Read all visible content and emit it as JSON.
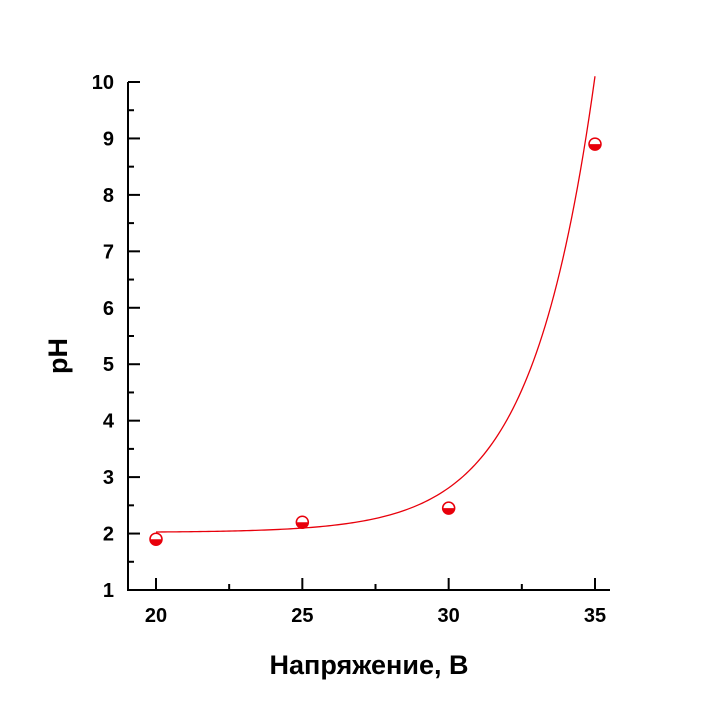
{
  "chart_data": {
    "type": "scatter",
    "title": "",
    "xlabel": "Напряжение, В",
    "ylabel": "pH",
    "xlim": [
      19,
      35.5
    ],
    "ylim": [
      1,
      10
    ],
    "xticks": [
      20,
      25,
      30,
      35
    ],
    "yticks": [
      1,
      2,
      3,
      4,
      5,
      6,
      7,
      8,
      9,
      10
    ],
    "grid": false,
    "legend": "none",
    "series": [
      {
        "marker": "half-filled-circle",
        "color": "#e8000b",
        "x": [
          20,
          25,
          30,
          35
        ],
        "y": [
          1.9,
          2.2,
          2.45,
          8.9
        ]
      }
    ],
    "fit": {
      "kind": "exponential",
      "color": "#e8000b",
      "equation_params": {
        "y0": 2.02,
        "A": 6.88e-07,
        "t": 2.15
      }
    }
  }
}
